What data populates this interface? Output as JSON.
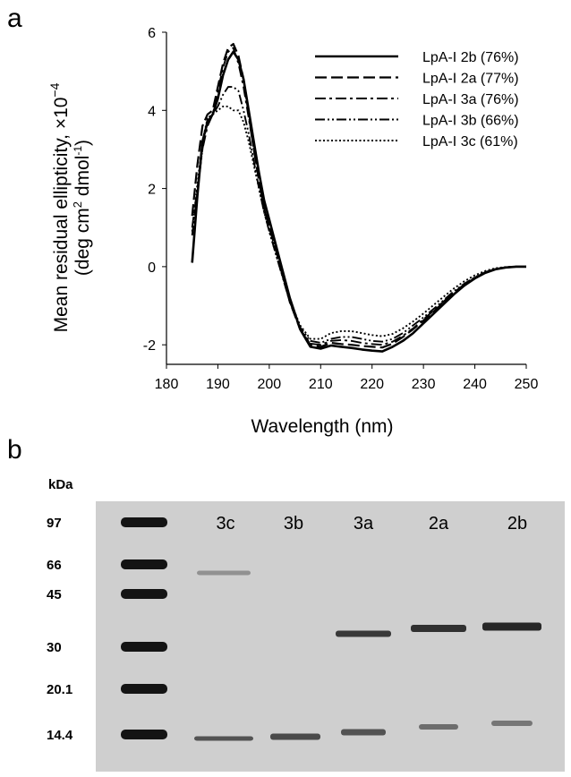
{
  "panel_a_label": "a",
  "panel_b_label": "b",
  "chart_data": {
    "type": "line",
    "xlabel": "Wavelength (nm)",
    "ylabel_line1": "Mean residual ellipticity, ×10",
    "ylabel_line1_exp": "−4",
    "ylabel_line2": "(deg cm",
    "ylabel_line2_sup": "2",
    "ylabel_line2_mid": " dmol",
    "ylabel_line2_sup2": "-1",
    "ylabel_line2_end": ")",
    "xlim": [
      180,
      250
    ],
    "ylim": [
      -2.5,
      6
    ],
    "xticks": [
      180,
      190,
      200,
      210,
      220,
      230,
      240,
      250
    ],
    "yticks": [
      -2,
      0,
      2,
      4,
      6
    ],
    "legend_position": "top-right",
    "series": [
      {
        "name": "LpA-I 2b (76%)",
        "dash": "solid",
        "x": [
          185,
          186,
          187,
          188,
          189,
          190,
          191,
          192,
          193,
          194,
          195,
          196,
          197,
          198,
          199,
          200,
          202,
          204,
          206,
          208,
          210,
          212,
          214,
          216,
          218,
          220,
          222,
          224,
          226,
          228,
          230,
          232,
          234,
          236,
          238,
          240,
          242,
          244,
          246,
          248,
          250
        ],
        "y": [
          0.1,
          1.8,
          3.2,
          3.7,
          3.9,
          4.3,
          4.9,
          5.3,
          5.5,
          5.3,
          4.8,
          4.0,
          3.2,
          2.4,
          1.7,
          1.2,
          0.2,
          -0.8,
          -1.6,
          -2.05,
          -2.1,
          -2.02,
          -2.05,
          -2.08,
          -2.12,
          -2.15,
          -2.17,
          -2.05,
          -1.9,
          -1.7,
          -1.45,
          -1.2,
          -0.95,
          -0.7,
          -0.48,
          -0.3,
          -0.16,
          -0.07,
          -0.02,
          0.0,
          0.0
        ]
      },
      {
        "name": "LpA-I 2a (77%)",
        "dash": "long-dash",
        "x": [
          185,
          186,
          187,
          188,
          189,
          190,
          191,
          192,
          193,
          194,
          195,
          196,
          197,
          198,
          199,
          200,
          202,
          204,
          206,
          208,
          210,
          212,
          214,
          216,
          218,
          220,
          222,
          224,
          226,
          228,
          230,
          232,
          234,
          236,
          238,
          240,
          242,
          244,
          246,
          248,
          250
        ],
        "y": [
          1.3,
          2.6,
          3.6,
          3.9,
          4.0,
          4.6,
          5.2,
          5.6,
          5.7,
          5.4,
          4.8,
          3.9,
          3.0,
          2.2,
          1.5,
          1.0,
          0.1,
          -0.9,
          -1.6,
          -2.0,
          -2.05,
          -1.95,
          -1.98,
          -2.0,
          -2.03,
          -2.05,
          -2.07,
          -1.97,
          -1.8,
          -1.6,
          -1.38,
          -1.15,
          -0.9,
          -0.66,
          -0.46,
          -0.29,
          -0.15,
          -0.06,
          -0.02,
          0.0,
          0.0
        ]
      },
      {
        "name": "LpA-I 3a (76%)",
        "dash": "dash-dot",
        "x": [
          185,
          186,
          187,
          188,
          189,
          190,
          191,
          192,
          193,
          194,
          195,
          196,
          197,
          198,
          199,
          200,
          202,
          204,
          206,
          208,
          210,
          212,
          214,
          216,
          218,
          220,
          222,
          224,
          226,
          228,
          230,
          232,
          234,
          236,
          238,
          240,
          242,
          244,
          246,
          248,
          250
        ],
        "y": [
          1.0,
          2.0,
          3.0,
          3.6,
          3.9,
          4.5,
          5.1,
          5.5,
          5.6,
          5.2,
          4.6,
          3.8,
          3.0,
          2.2,
          1.5,
          1.0,
          0.1,
          -0.9,
          -1.6,
          -1.97,
          -2.0,
          -1.9,
          -1.88,
          -1.9,
          -1.95,
          -1.98,
          -2.0,
          -1.92,
          -1.77,
          -1.58,
          -1.35,
          -1.12,
          -0.88,
          -0.65,
          -0.45,
          -0.28,
          -0.15,
          -0.06,
          -0.02,
          0.0,
          0.0
        ]
      },
      {
        "name": "LpA-I 3b (66%)",
        "dash": "dash-dot-dot",
        "x": [
          185,
          186,
          187,
          188,
          189,
          190,
          191,
          192,
          193,
          194,
          195,
          196,
          197,
          198,
          199,
          200,
          202,
          204,
          206,
          208,
          210,
          212,
          214,
          216,
          218,
          220,
          222,
          224,
          226,
          228,
          230,
          232,
          234,
          236,
          238,
          240,
          242,
          244,
          246,
          248,
          250
        ],
        "y": [
          0.8,
          1.9,
          3.0,
          3.8,
          3.9,
          4.1,
          4.4,
          4.6,
          4.6,
          4.5,
          4.0,
          3.4,
          2.7,
          2.0,
          1.4,
          0.9,
          0.0,
          -0.9,
          -1.55,
          -1.9,
          -1.95,
          -1.85,
          -1.8,
          -1.8,
          -1.85,
          -1.9,
          -1.92,
          -1.85,
          -1.7,
          -1.5,
          -1.3,
          -1.08,
          -0.85,
          -0.62,
          -0.43,
          -0.27,
          -0.14,
          -0.06,
          -0.02,
          0.0,
          0.0
        ]
      },
      {
        "name": "LpA-I 3c (61%)",
        "dash": "dotted",
        "x": [
          185,
          186,
          187,
          188,
          189,
          190,
          191,
          192,
          193,
          194,
          195,
          196,
          197,
          198,
          199,
          200,
          202,
          204,
          206,
          208,
          210,
          212,
          214,
          216,
          218,
          220,
          222,
          224,
          226,
          228,
          230,
          232,
          234,
          236,
          238,
          240,
          242,
          244,
          246,
          248,
          250
        ],
        "y": [
          0.9,
          2.1,
          3.2,
          3.8,
          3.9,
          4.0,
          4.1,
          4.1,
          4.0,
          4.0,
          3.7,
          3.2,
          2.6,
          2.0,
          1.4,
          0.9,
          0.0,
          -0.85,
          -1.5,
          -1.85,
          -1.85,
          -1.7,
          -1.65,
          -1.65,
          -1.7,
          -1.75,
          -1.78,
          -1.72,
          -1.58,
          -1.4,
          -1.2,
          -0.98,
          -0.76,
          -0.55,
          -0.37,
          -0.22,
          -0.11,
          -0.04,
          -0.01,
          0.0,
          0.0
        ]
      }
    ]
  },
  "gel": {
    "kda_label": "kDa",
    "markers": [
      "97",
      "66",
      "45",
      "30",
      "20.1",
      "14.4"
    ],
    "marker_kda": [
      97,
      66,
      45,
      30,
      20.1,
      14.4
    ],
    "lanes": [
      "3c",
      "3b",
      "3a",
      "2a",
      "2b"
    ],
    "colors": {
      "background": "#cfcfcf",
      "band": "#1e1e1e",
      "marker_band": "#141414"
    }
  }
}
